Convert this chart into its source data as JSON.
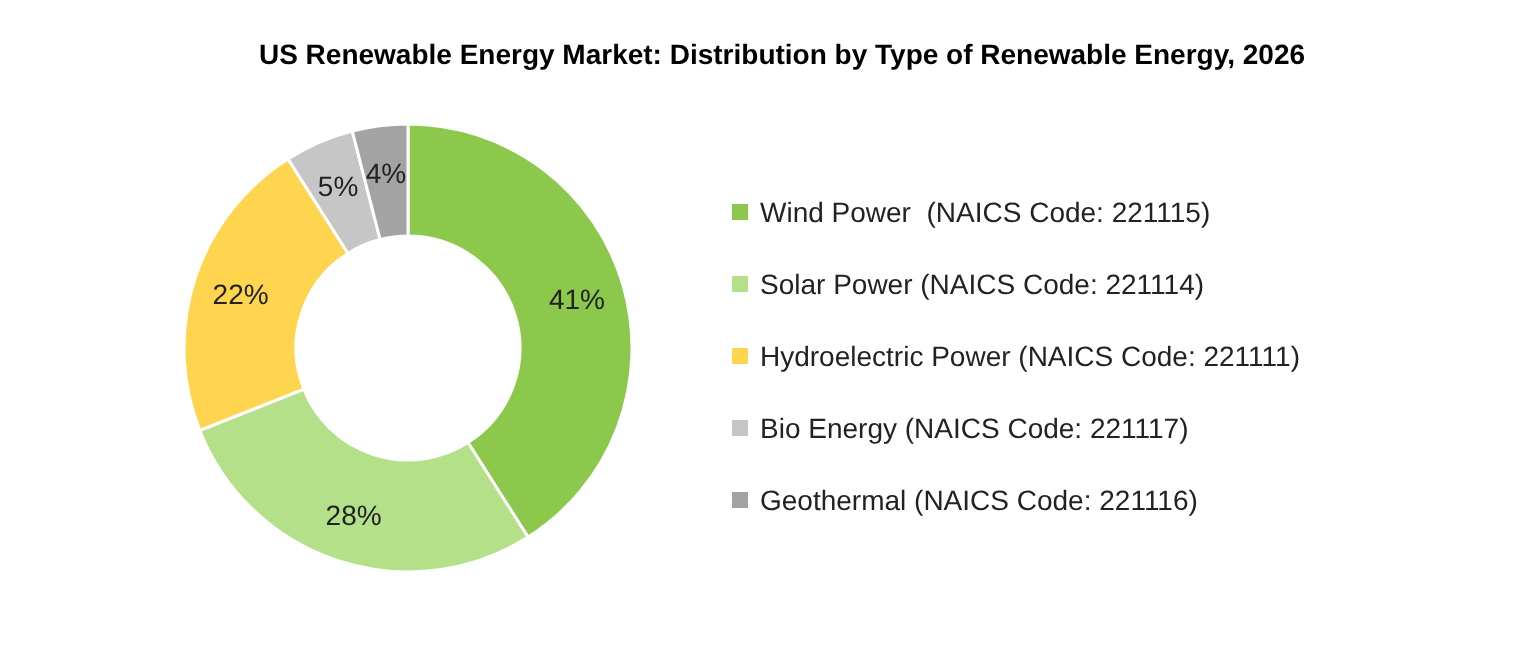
{
  "chart_data": {
    "type": "donut",
    "title": "US Renewable Energy Market: Distribution by Type of Renewable Energy, 2026",
    "categories": [
      "Wind Power  (NAICS Code: 221115)",
      "Solar Power (NAICS Code: 221114)",
      "Hydroelectric Power (NAICS Code: 221111)",
      "Bio Energy (NAICS Code: 221117)",
      "Geothermal (NAICS Code: 221116)"
    ],
    "values": [
      41,
      28,
      22,
      5,
      4
    ],
    "colors": [
      "#8cc84b",
      "#b5e08a",
      "#ffd54f",
      "#c6c6c6",
      "#a3a3a3"
    ],
    "value_labels": [
      "41%",
      "28%",
      "22%",
      "5%",
      "4%"
    ],
    "legend": "right"
  }
}
